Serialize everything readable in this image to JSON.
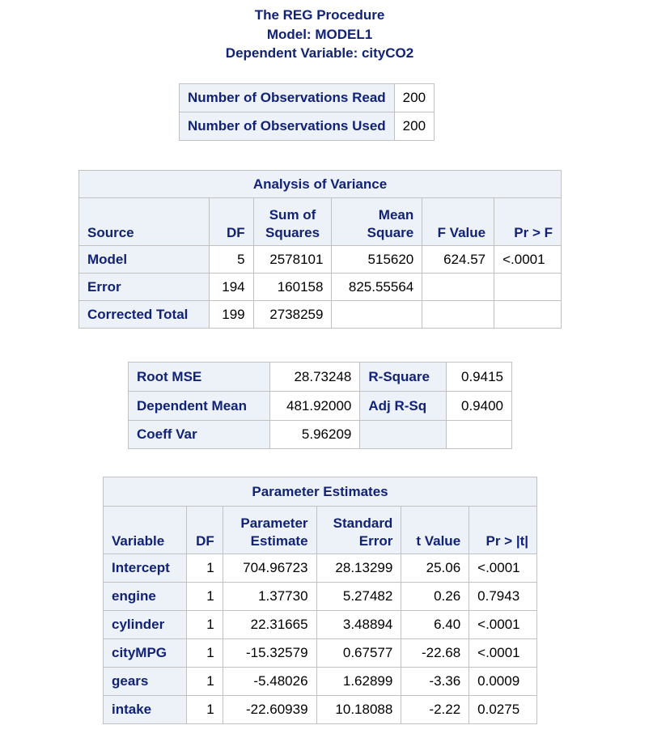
{
  "titles": [
    "The REG Procedure",
    "Model: MODEL1",
    "Dependent Variable: cityCO2"
  ],
  "observations": {
    "rows": [
      {
        "label": "Number of Observations Read",
        "value": "200"
      },
      {
        "label": "Number of Observations Used",
        "value": "200"
      }
    ]
  },
  "anova": {
    "caption": "Analysis of Variance",
    "headers": {
      "source": "Source",
      "df": "DF",
      "ss_top": "Sum of",
      "ss_bottom": "Squares",
      "ms_top": "Mean",
      "ms_bottom": "Square",
      "f": "F Value",
      "p": "Pr > F"
    },
    "rows": [
      {
        "source": "Model",
        "df": "5",
        "ss": "2578101",
        "ms": "515620",
        "f": "624.57",
        "p": "<.0001"
      },
      {
        "source": "Error",
        "df": "194",
        "ss": "160158",
        "ms": "825.55564",
        "f": "",
        "p": ""
      },
      {
        "source": "Corrected Total",
        "df": "199",
        "ss": "2738259",
        "ms": "",
        "f": "",
        "p": ""
      }
    ]
  },
  "fit": {
    "rows": [
      {
        "label1": "Root MSE",
        "value1": "28.73248",
        "label2": "R-Square",
        "value2": "0.9415"
      },
      {
        "label1": "Dependent Mean",
        "value1": "481.92000",
        "label2": "Adj R-Sq",
        "value2": "0.9400"
      },
      {
        "label1": "Coeff Var",
        "value1": "5.96209",
        "label2": "",
        "value2": ""
      }
    ]
  },
  "params": {
    "caption": "Parameter Estimates",
    "headers": {
      "variable": "Variable",
      "df": "DF",
      "est_top": "Parameter",
      "est_bottom": "Estimate",
      "se_top": "Standard",
      "se_bottom": "Error",
      "t": "t Value",
      "p": "Pr > |t|"
    },
    "rows": [
      {
        "variable": "Intercept",
        "df": "1",
        "est": "704.96723",
        "se": "28.13299",
        "t": "25.06",
        "p": "<.0001"
      },
      {
        "variable": "engine",
        "df": "1",
        "est": "1.37730",
        "se": "5.27482",
        "t": "0.26",
        "p": "0.7943"
      },
      {
        "variable": "cylinder",
        "df": "1",
        "est": "22.31665",
        "se": "3.48894",
        "t": "6.40",
        "p": "<.0001"
      },
      {
        "variable": "cityMPG",
        "df": "1",
        "est": "-15.32579",
        "se": "0.67577",
        "t": "-22.68",
        "p": "<.0001"
      },
      {
        "variable": "gears",
        "df": "1",
        "est": "-5.48026",
        "se": "1.62899",
        "t": "-3.36",
        "p": "0.0009"
      },
      {
        "variable": "intake",
        "df": "1",
        "est": "-22.60939",
        "se": "10.18088",
        "t": "-2.22",
        "p": "0.0275"
      }
    ]
  }
}
